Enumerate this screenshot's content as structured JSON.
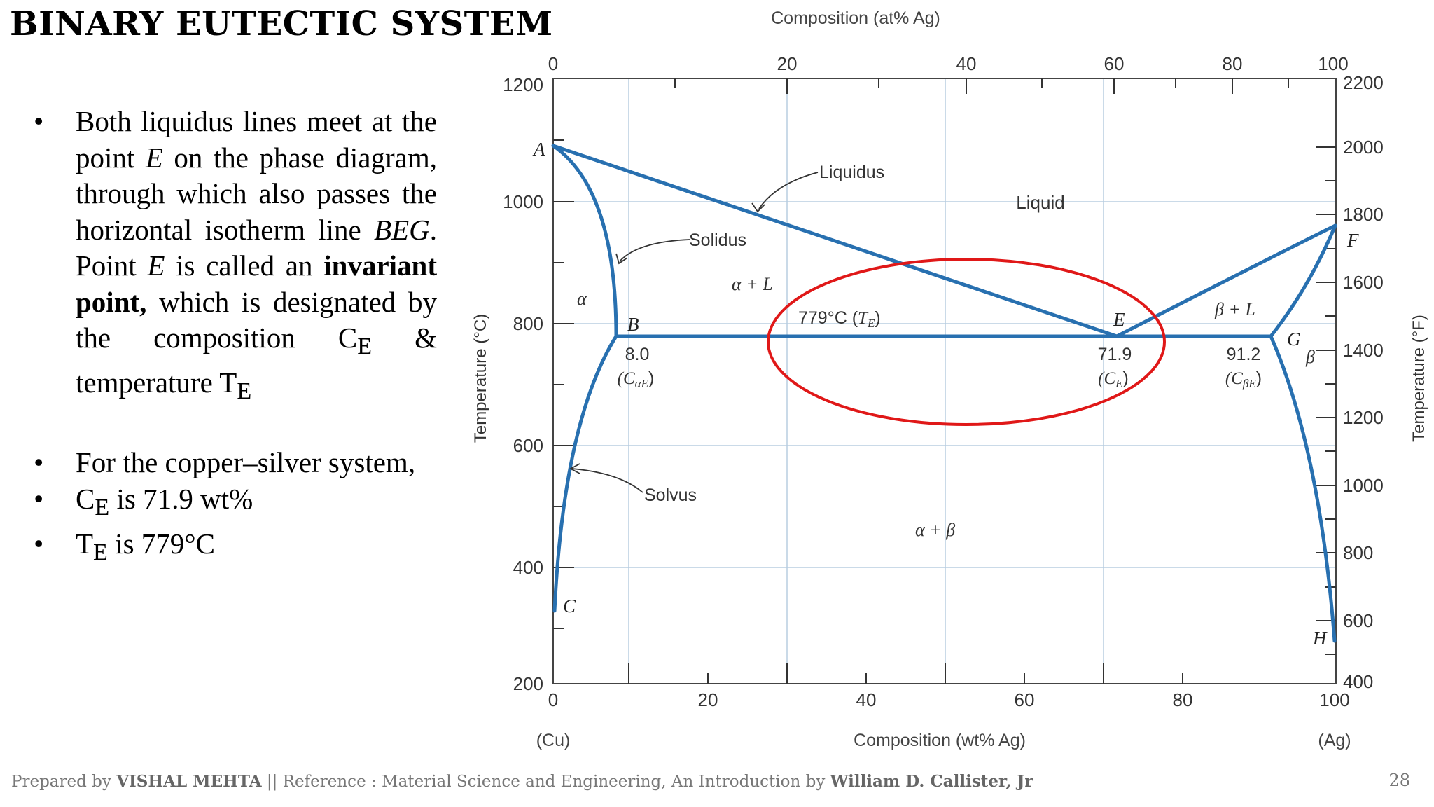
{
  "title": "BINARY EUTECTIC SYSTEM",
  "bullets": {
    "b1": {
      "t1": "Both liquidus lines meet at the point ",
      "e1": "E",
      "t2": " on the phase diagram, through which also passes the horizontal isotherm line ",
      "beg": "BEG",
      "t3": ". Point ",
      "e2": "E",
      "t4": " is called an ",
      "bold": "invariant point,",
      "t5": " which is designated by the composition C",
      "sub1": "E",
      "t6": " & temperature T",
      "sub2": "E"
    },
    "b2": "For the copper–silver system,",
    "b3": {
      "pre": "C",
      "sub": "E",
      "post": " is 71.9 wt%"
    },
    "b4": {
      "pre": "T",
      "sub": "E",
      "post": " is 779°C"
    }
  },
  "footer": {
    "prepared_by": "Prepared by ",
    "author": "VISHAL MEHTA",
    "ref": " || Reference : Material Science and Engineering, An Introduction by ",
    "ref_author": "William D. Callister, Jr"
  },
  "page_number": "28",
  "diagram": {
    "top_axis_title": "Composition (at% Ag)",
    "top_ticks": [
      "0",
      "20",
      "40",
      "60",
      "80",
      "100"
    ],
    "bottom_axis_title": "Composition (wt% Ag)",
    "bottom_ticks": [
      "0",
      "20",
      "40",
      "60",
      "80",
      "100"
    ],
    "left_axis_title": "Temperature (°C)",
    "left_ticks": [
      "1200",
      "1000",
      "800",
      "600",
      "400",
      "200"
    ],
    "right_axis_title": "Temperature (°F)",
    "right_ticks": [
      "2200",
      "2000",
      "1800",
      "1600",
      "1400",
      "1200",
      "1000",
      "800",
      "600",
      "400"
    ],
    "cu_label": "(Cu)",
    "ag_label": "(Ag)",
    "labels": {
      "liquidus": "Liquidus",
      "solidus": "Solidus",
      "solvus": "Solvus",
      "liquid": "Liquid",
      "alpha": "α",
      "alpha_l": "α + L",
      "beta_l": "β + L",
      "beta": "β",
      "alpha_beta": "α + β",
      "point_a": "A",
      "point_b": "B",
      "point_c": "C",
      "point_e": "E",
      "point_f": "F",
      "point_g": "G",
      "point_h": "H",
      "te_value": "779°C (",
      "te_sym": "T",
      "te_sub": "E",
      "te_close": ")",
      "b_comp": "8.0",
      "b_sym": "(C",
      "b_sub": "αE",
      "e_comp": "71.9",
      "e_sym": "(C",
      "e_sub": "E",
      "g_comp": "91.2",
      "g_sym": "(C",
      "g_sub": "βE",
      "close_paren": ")"
    },
    "colors": {
      "phase_lines": "#2870b0",
      "grid": "#b8cde0",
      "highlight_ellipse": "#e01818"
    }
  }
}
